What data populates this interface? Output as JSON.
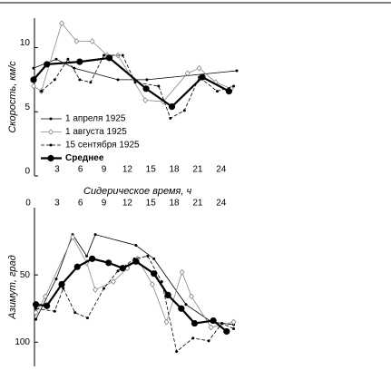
{
  "chart_data": [
    {
      "type": "line",
      "y_label": "Скорость, км/с",
      "x_axis_position": "bottom",
      "xlim": [
        0,
        26
      ],
      "ylim": [
        0,
        12.3
      ],
      "xticks": [
        3,
        6,
        9,
        12,
        15,
        18,
        21,
        24
      ],
      "yticks": [
        0,
        5,
        10
      ],
      "legend": "lower left",
      "series": [
        {
          "name": "1 апреля 1925",
          "color": "#000000",
          "marker": "dot",
          "dash": false,
          "line_width": 0.8,
          "x": [
            0,
            2.9,
            5.2,
            10.8,
            14.5,
            26
          ],
          "values": [
            8.4,
            9.1,
            8.4,
            7.5,
            7.5,
            8.2
          ]
        },
        {
          "name": "1 августа 1925",
          "color": "#888888",
          "marker": "diamond",
          "dash": false,
          "line_width": 0.8,
          "x": [
            0,
            1,
            3.6,
            5.5,
            7.5,
            9.4,
            10.8,
            14.3,
            16.6,
            19.7,
            21.2,
            23.3,
            25.3
          ],
          "values": [
            7.0,
            6.6,
            11.9,
            10.5,
            10.5,
            9.4,
            9.4,
            5.9,
            5.8,
            8.0,
            8.4,
            7.3,
            6.8
          ]
        },
        {
          "name": "15 сентября 1925",
          "color": "#000000",
          "marker": "dot",
          "dash": true,
          "line_width": 0.8,
          "x": [
            1,
            2.7,
            4.4,
            5.9,
            7.3,
            9,
            11.4,
            13,
            16,
            17.5,
            19.3,
            21.2,
            23.5,
            25.6
          ],
          "values": [
            6.6,
            7.5,
            9.1,
            7.5,
            7.3,
            9.4,
            9.4,
            7.3,
            7.0,
            4.5,
            5.1,
            7.7,
            6.6,
            7.0
          ]
        },
        {
          "name": "Среднее",
          "color": "#000000",
          "marker": "circle",
          "dash": false,
          "line_width": 2.2,
          "x": [
            0,
            1.7,
            5.9,
            9.7,
            14.4,
            17.7,
            21.6,
            25
          ],
          "values": [
            7.5,
            8.7,
            8.9,
            9.2,
            6.8,
            5.4,
            7.7,
            6.6
          ]
        }
      ]
    },
    {
      "type": "line",
      "x_label": "Сидерическое время, ч",
      "y_label": "Азимут, град",
      "x_axis_position": "top",
      "y_inverted": true,
      "xlim": [
        0,
        26
      ],
      "ylim": [
        0,
        118
      ],
      "xticks": [
        0,
        3,
        6,
        9,
        12,
        15,
        18,
        21,
        24
      ],
      "yticks": [
        50,
        100
      ],
      "series": [
        {
          "color": "#000000",
          "marker": "dot",
          "dash": false,
          "line_width": 0.8,
          "x": [
            0.3,
            2.9,
            5,
            6.8,
            7.9,
            13.1,
            15.4,
            19.5,
            22.8,
            25.6
          ],
          "values": [
            83,
            53,
            20,
            36,
            20,
            28,
            38,
            72,
            85,
            87
          ]
        },
        {
          "color": "#888888",
          "marker": "diamond",
          "dash": false,
          "line_width": 0.8,
          "x": [
            0.3,
            1.5,
            5,
            6.8,
            7.9,
            10.2,
            12,
            13.3,
            15.2,
            17,
            19,
            20.2,
            22.7,
            25.6
          ],
          "values": [
            78,
            66,
            22,
            41,
            61,
            55,
            45,
            38,
            57,
            85,
            48,
            66,
            89,
            85
          ]
        },
        {
          "color": "#000000",
          "marker": "dot",
          "dash": true,
          "line_width": 0.8,
          "x": [
            0.3,
            2.7,
            3.8,
            5.3,
            6.9,
            9,
            10.8,
            12.9,
            14.6,
            16.4,
            18.3,
            20.4,
            22.4,
            24.1,
            25.6
          ],
          "values": [
            75,
            77,
            60,
            78,
            82,
            60,
            47,
            38,
            36,
            55,
            107,
            97,
            99,
            86,
            90
          ]
        },
        {
          "color": "#000000",
          "marker": "circle",
          "dash": false,
          "line_width": 2.2,
          "x": [
            0.3,
            1.7,
            3.6,
            5.6,
            7.5,
            9.6,
            11.4,
            13.1,
            15.4,
            17.2,
            18.9,
            20.6,
            23,
            24.7
          ],
          "values": [
            72,
            73,
            57,
            44,
            38,
            41,
            45,
            40,
            49,
            65,
            75,
            86,
            84,
            92
          ]
        }
      ]
    }
  ]
}
